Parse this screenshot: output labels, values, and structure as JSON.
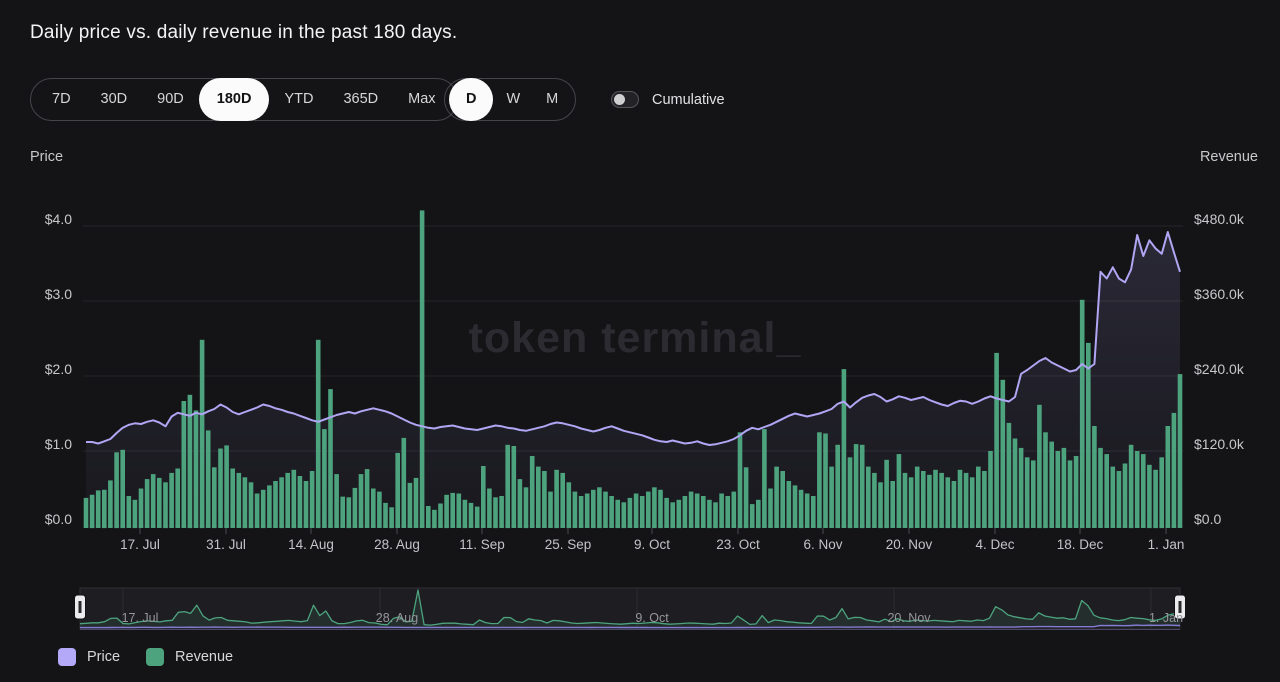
{
  "title": "Daily price vs. daily revenue in the past 180 days.",
  "watermark": "token terminal_",
  "controls": {
    "range_options": [
      "7D",
      "30D",
      "90D",
      "180D",
      "YTD",
      "365D",
      "Max"
    ],
    "range_selected": "180D",
    "granularity_options": [
      "D",
      "W",
      "M"
    ],
    "granularity_selected": "D",
    "cumulative_label": "Cumulative",
    "cumulative_on": false
  },
  "axes": {
    "left_title": "Price",
    "right_title": "Revenue",
    "left_tick_labels": [
      "$4.0",
      "$3.0",
      "$2.0",
      "$1.0",
      "$0.0"
    ],
    "right_tick_labels": [
      "$480.0k",
      "$360.0k",
      "$240.0k",
      "$120.0k",
      "$0.0"
    ]
  },
  "legend": {
    "items": [
      {
        "label": "Price",
        "color": "#b4a8f8"
      },
      {
        "label": "Revenue",
        "color": "#4da37e"
      }
    ]
  },
  "chart_data": {
    "type": "combo",
    "grid": "horizontal",
    "legend_position": "bottom-left",
    "x_tick_labels": [
      "17. Jul",
      "31. Jul",
      "14. Aug",
      "28. Aug",
      "11. Sep",
      "25. Sep",
      "9. Oct",
      "23. Oct",
      "6. Nov",
      "20. Nov",
      "4. Dec",
      "18. Dec",
      "1. Jan"
    ],
    "brush_tick_labels": [
      "17. Jul",
      "28. Aug",
      "9. Oct",
      "20. Nov",
      "1. Jan"
    ],
    "n_points": 180,
    "series": [
      {
        "name": "Price",
        "type": "line",
        "axis": "left",
        "color": "#b0a6f4",
        "unit": "USD",
        "ylim": [
          0,
          4.4
        ],
        "tick_values": [
          4.0,
          3.0,
          2.0,
          1.0,
          0.0
        ],
        "values": [
          1.12,
          1.12,
          1.1,
          1.13,
          1.16,
          1.24,
          1.31,
          1.35,
          1.37,
          1.36,
          1.39,
          1.41,
          1.38,
          1.33,
          1.46,
          1.51,
          1.49,
          1.47,
          1.51,
          1.49,
          1.53,
          1.56,
          1.62,
          1.58,
          1.52,
          1.49,
          1.52,
          1.55,
          1.58,
          1.62,
          1.6,
          1.57,
          1.55,
          1.52,
          1.5,
          1.47,
          1.44,
          1.41,
          1.39,
          1.42,
          1.45,
          1.48,
          1.5,
          1.52,
          1.5,
          1.53,
          1.55,
          1.57,
          1.55,
          1.53,
          1.5,
          1.46,
          1.42,
          1.38,
          1.35,
          1.33,
          1.31,
          1.3,
          1.32,
          1.33,
          1.34,
          1.32,
          1.3,
          1.29,
          1.28,
          1.3,
          1.32,
          1.34,
          1.33,
          1.31,
          1.3,
          1.28,
          1.27,
          1.29,
          1.31,
          1.33,
          1.36,
          1.38,
          1.37,
          1.35,
          1.33,
          1.3,
          1.28,
          1.26,
          1.28,
          1.31,
          1.33,
          1.3,
          1.27,
          1.25,
          1.23,
          1.21,
          1.18,
          1.15,
          1.13,
          1.12,
          1.14,
          1.12,
          1.1,
          1.11,
          1.13,
          1.1,
          1.08,
          1.09,
          1.11,
          1.13,
          1.16,
          1.21,
          1.27,
          1.31,
          1.29,
          1.32,
          1.35,
          1.39,
          1.43,
          1.47,
          1.5,
          1.48,
          1.46,
          1.48,
          1.5,
          1.53,
          1.56,
          1.63,
          1.66,
          1.58,
          1.65,
          1.71,
          1.74,
          1.76,
          1.72,
          1.66,
          1.69,
          1.73,
          1.71,
          1.68,
          1.7,
          1.72,
          1.68,
          1.65,
          1.62,
          1.6,
          1.64,
          1.67,
          1.66,
          1.63,
          1.66,
          1.7,
          1.73,
          1.7,
          1.68,
          1.66,
          1.72,
          2.03,
          2.08,
          2.14,
          2.2,
          2.24,
          2.18,
          2.14,
          2.1,
          2.06,
          2.08,
          2.16,
          2.1,
          2.16,
          3.39,
          3.3,
          3.45,
          3.3,
          3.25,
          3.42,
          3.88,
          3.6,
          3.81,
          3.7,
          3.63,
          3.92,
          3.65,
          3.39
        ]
      },
      {
        "name": "Revenue",
        "type": "bar",
        "axis": "right",
        "color": "#4da37e",
        "unit": "USD thousands",
        "ylim": [
          0,
          530
        ],
        "tick_values": [
          480,
          360,
          240,
          120,
          0
        ],
        "values": [
          45,
          50,
          57,
          58,
          73,
          118,
          122,
          48,
          42,
          60,
          75,
          83,
          77,
          70,
          85,
          92,
          200,
          210,
          185,
          298,
          153,
          94,
          124,
          129,
          92,
          85,
          78,
          70,
          52,
          58,
          65,
          72,
          78,
          85,
          90,
          80,
          72,
          88,
          298,
          155,
          219,
          83,
          47,
          46,
          61,
          83,
          91,
          60,
          55,
          37,
          30,
          117,
          141,
          69,
          77,
          505,
          32,
          26,
          36,
          50,
          53,
          52,
          42,
          37,
          31,
          96,
          60,
          46,
          48,
          130,
          128,
          75,
          62,
          112,
          95,
          88,
          55,
          90,
          85,
          70,
          55,
          48,
          52,
          58,
          62,
          55,
          48,
          42,
          38,
          45,
          52,
          48,
          55,
          62,
          58,
          45,
          38,
          42,
          48,
          55,
          52,
          48,
          42,
          38,
          52,
          48,
          55,
          150,
          94,
          35,
          42,
          155,
          60,
          95,
          88,
          72,
          65,
          58,
          52,
          48,
          150,
          148,
          95,
          130,
          251,
          110,
          131,
          130,
          95,
          85,
          70,
          106,
          72,
          115,
          85,
          78,
          95,
          88,
          82,
          90,
          85,
          78,
          72,
          90,
          85,
          78,
          95,
          88,
          120,
          277,
          234,
          165,
          140,
          125,
          110,
          105,
          194,
          150,
          135,
          120,
          125,
          105,
          112,
          362,
          293,
          160,
          125,
          115,
          95,
          88,
          100,
          130,
          120,
          115,
          98,
          90,
          110,
          160,
          181,
          243
        ]
      }
    ]
  }
}
